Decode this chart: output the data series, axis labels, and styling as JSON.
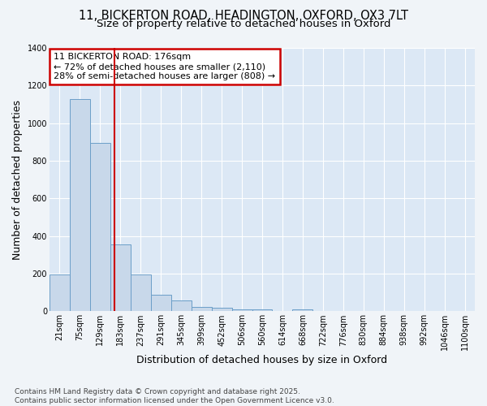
{
  "title_line1": "11, BICKERTON ROAD, HEADINGTON, OXFORD, OX3 7LT",
  "title_line2": "Size of property relative to detached houses in Oxford",
  "xlabel": "Distribution of detached houses by size in Oxford",
  "ylabel": "Number of detached properties",
  "bar_labels": [
    "21sqm",
    "75sqm",
    "129sqm",
    "183sqm",
    "237sqm",
    "291sqm",
    "345sqm",
    "399sqm",
    "452sqm",
    "506sqm",
    "560sqm",
    "614sqm",
    "668sqm",
    "722sqm",
    "776sqm",
    "830sqm",
    "884sqm",
    "938sqm",
    "992sqm",
    "1046sqm",
    "1100sqm"
  ],
  "bar_values": [
    195,
    1130,
    895,
    355,
    195,
    90,
    57,
    22,
    17,
    11,
    10,
    0,
    10,
    0,
    0,
    0,
    0,
    0,
    0,
    0,
    0
  ],
  "bar_color": "#c8d8ea",
  "bar_edge_color": "#6b9ec8",
  "bar_linewidth": 0.7,
  "vline_x": 2.72,
  "vline_color": "#cc0000",
  "vline_linewidth": 1.5,
  "annotation_text": "11 BICKERTON ROAD: 176sqm\n← 72% of detached houses are smaller (2,110)\n28% of semi-detached houses are larger (808) →",
  "annotation_box_color": "#cc0000",
  "annotation_text_color": "black",
  "annotation_bg_color": "white",
  "ylim": [
    0,
    1400
  ],
  "yticks": [
    0,
    200,
    400,
    600,
    800,
    1000,
    1200,
    1400
  ],
  "fig_bg_color": "#f0f4f8",
  "plot_bg_color": "#dce8f5",
  "grid_color": "white",
  "footer_line1": "Contains HM Land Registry data © Crown copyright and database right 2025.",
  "footer_line2": "Contains public sector information licensed under the Open Government Licence v3.0.",
  "title_fontsize": 10.5,
  "subtitle_fontsize": 9.5,
  "axis_label_fontsize": 9,
  "tick_fontsize": 7,
  "annotation_fontsize": 8,
  "footer_fontsize": 6.5
}
